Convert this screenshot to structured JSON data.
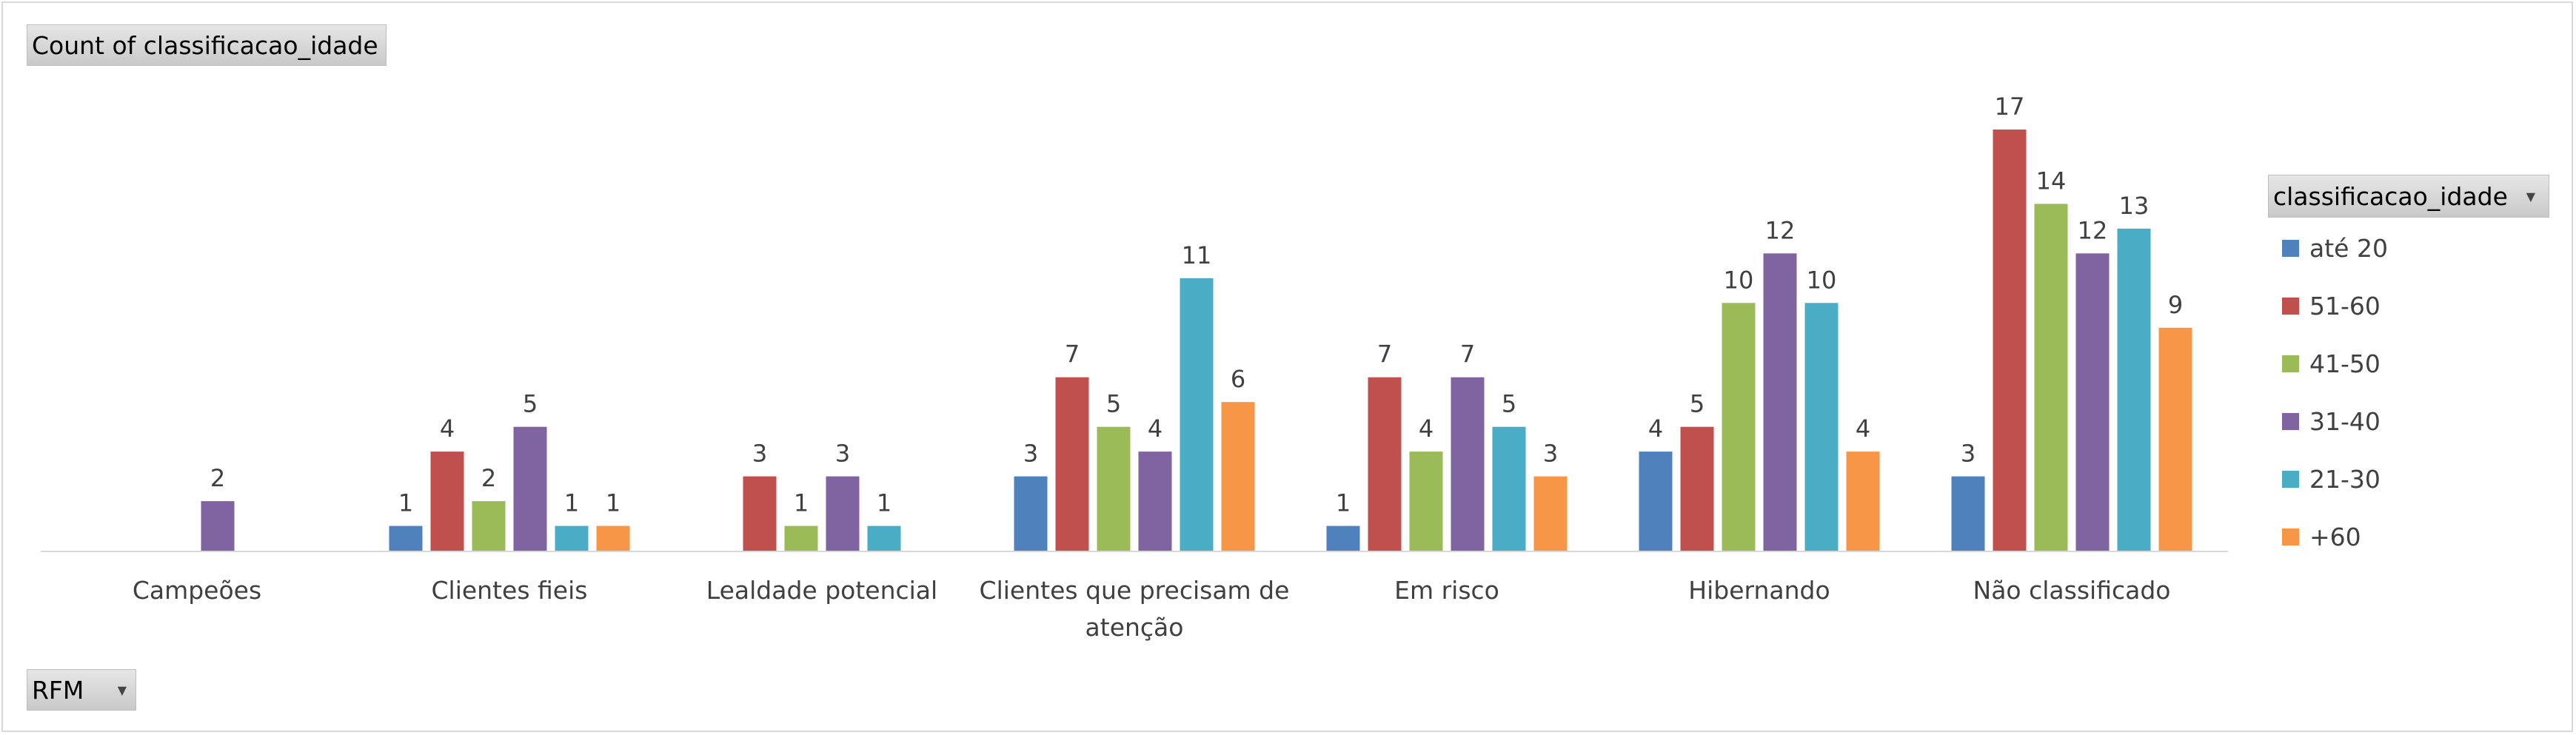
{
  "field_buttons": {
    "values_label": "Count of classificacao_idade",
    "legend_field_label": "classificacao_idade",
    "axis_field_label": "RFM"
  },
  "chart_data": {
    "type": "bar",
    "title": "",
    "xlabel": "",
    "ylabel": "",
    "ylim": [
      0,
      17
    ],
    "grid": false,
    "legend": "right",
    "categories": [
      [
        "Campeões"
      ],
      [
        "Clientes fieis"
      ],
      [
        "Lealdade potencial"
      ],
      [
        "Clientes que precisam de",
        "atenção"
      ],
      [
        "Em risco"
      ],
      [
        "Hibernando"
      ],
      [
        "Não classificado"
      ]
    ],
    "series": [
      {
        "name": "até 20",
        "color": "#4f81bd",
        "values": [
          null,
          1,
          null,
          3,
          1,
          4,
          3
        ]
      },
      {
        "name": "51-60",
        "color": "#c0504d",
        "values": [
          null,
          4,
          3,
          7,
          7,
          5,
          17
        ]
      },
      {
        "name": "41-50",
        "color": "#9bbb59",
        "values": [
          null,
          2,
          1,
          5,
          4,
          10,
          14
        ]
      },
      {
        "name": "31-40",
        "color": "#8064a2",
        "values": [
          2,
          5,
          3,
          4,
          7,
          12,
          12
        ]
      },
      {
        "name": "21-30",
        "color": "#4bacc6",
        "values": [
          null,
          1,
          1,
          11,
          5,
          10,
          13
        ]
      },
      {
        "name": "+60",
        "color": "#f79646",
        "values": [
          null,
          1,
          null,
          6,
          3,
          4,
          9
        ]
      }
    ]
  }
}
